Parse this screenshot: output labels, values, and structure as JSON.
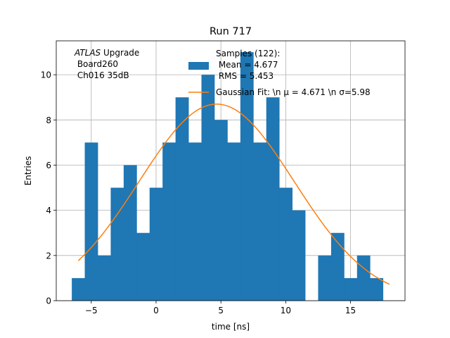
{
  "chart_data": {
    "type": "bar",
    "title": "Run 717",
    "xlabel": "time [ns]",
    "ylabel": "Entries",
    "xlim": [
      -7.7,
      19.2
    ],
    "ylim": [
      0,
      11.5
    ],
    "grid": true,
    "x_ticks": [
      -5,
      0,
      5,
      10,
      15
    ],
    "y_ticks": [
      0,
      2,
      4,
      6,
      8,
      10
    ],
    "bins": {
      "start": -6.5,
      "width": 1.0,
      "counts": [
        1,
        7,
        2,
        5,
        6,
        3,
        5,
        7,
        9,
        7,
        10,
        8,
        7,
        11,
        7,
        9,
        5,
        4,
        0,
        2,
        3,
        1,
        2,
        1
      ]
    },
    "series": [
      {
        "name": "Samples (122):\n Mean = 4.677\n RMS = 5.453",
        "kind": "histogram",
        "color": "#1f77b4"
      },
      {
        "name": "Gaussian Fit: \\n $\\mu$ = 4.671 \\n $\\sigma$=5.98",
        "kind": "line",
        "color": "#ff7f0e",
        "amplitude": 8.7,
        "mu": 4.671,
        "sigma": 5.98,
        "x_range": [
          -6.0,
          18.0
        ]
      }
    ],
    "legend": {
      "position": "top-center",
      "entries": [
        [
          "Samples (122):",
          " Mean = 4.677",
          " RMS = 5.453"
        ],
        [
          "Gaussian Fit: \\n μ = 4.671 \\n σ=5.98"
        ]
      ]
    },
    "annotation": {
      "italic": "ATLAS",
      "rest": " Upgrade",
      "line2": " Board260",
      "line3": " Ch016 35dB"
    }
  }
}
